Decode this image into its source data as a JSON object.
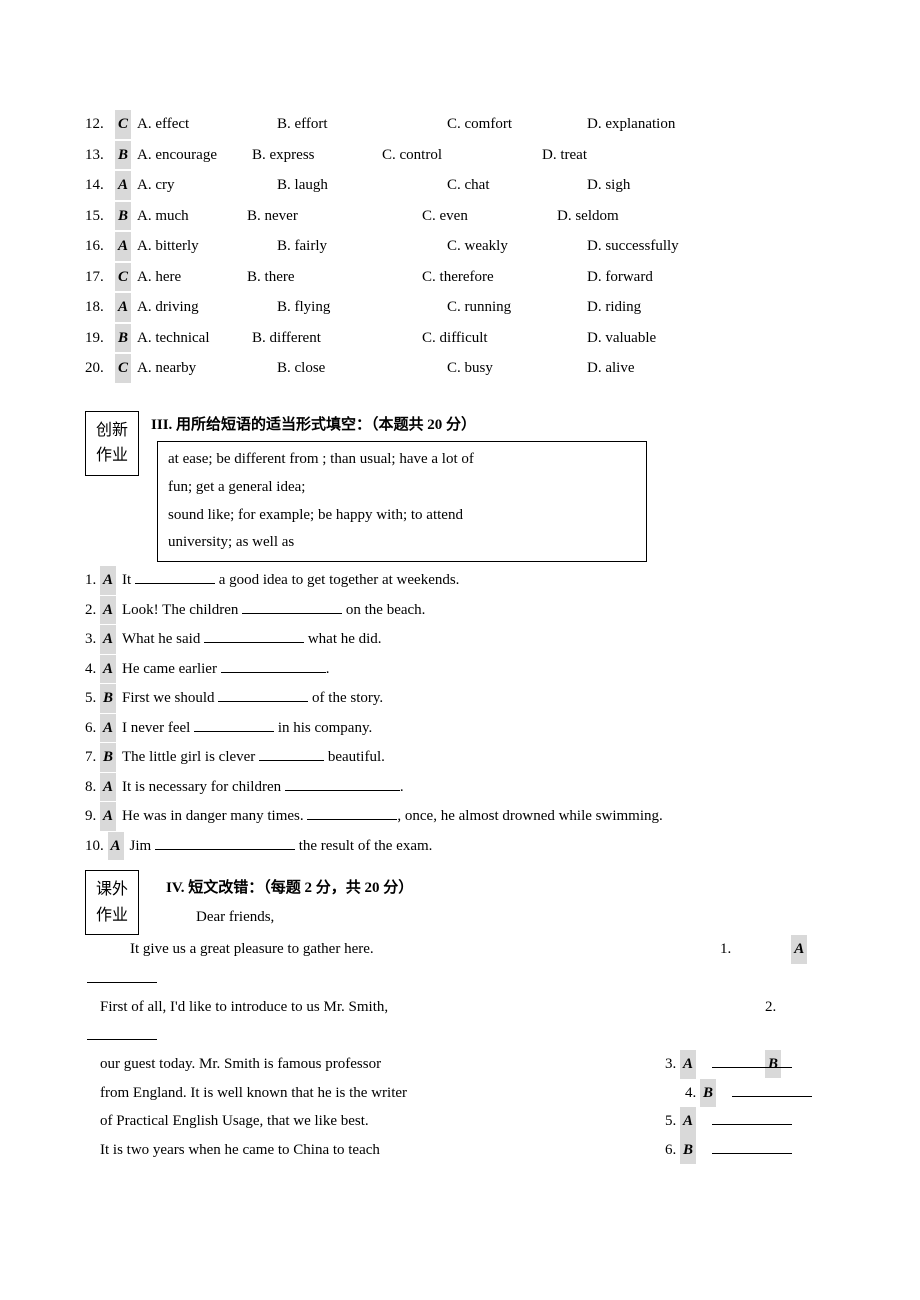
{
  "mc": [
    {
      "num": "12.",
      "ans": "C",
      "a": "A. effect",
      "b": "B. effort",
      "c": "C. comfort",
      "d": "D. explanation",
      "wA": 140,
      "wB": 170,
      "wC": 140,
      "wD": 0
    },
    {
      "num": "13.",
      "ans": "B",
      "a": "A. encourage",
      "b": "B. express",
      "c": "C. control",
      "d": "D. treat",
      "wA": 115,
      "wB": 130,
      "wC": 160,
      "wD": 0
    },
    {
      "num": "14.",
      "ans": "A",
      "a": "A. cry",
      "b": "B. laugh",
      "c": "C. chat",
      "d": "D. sigh",
      "wA": 140,
      "wB": 170,
      "wC": 140,
      "wD": 0
    },
    {
      "num": "15.",
      "ans": "B",
      "a": "A. much",
      "b": "B. never",
      "c": "C. even",
      "d": "D. seldom",
      "wA": 110,
      "wB": 175,
      "wC": 135,
      "wD": 0
    },
    {
      "num": "16.",
      "ans": "A",
      "a": "A. bitterly",
      "b": "B. fairly",
      "c": "C. weakly",
      "d": "D. successfully",
      "wA": 140,
      "wB": 170,
      "wC": 140,
      "wD": 0
    },
    {
      "num": "17.",
      "ans": "C",
      "a": "A. here",
      "b": "B. there",
      "c": "C. therefore",
      "d": "D. forward",
      "wA": 110,
      "wB": 175,
      "wC": 165,
      "wD": 0
    },
    {
      "num": "18.",
      "ans": "A",
      "a": "A. driving",
      "b": "B. flying",
      "c": "C. running",
      "d": "D. riding",
      "wA": 140,
      "wB": 170,
      "wC": 140,
      "wD": 0
    },
    {
      "num": "19.",
      "ans": "B",
      "a": "A. technical",
      "b": "B. different",
      "c": "C. difficult",
      "d": "D. valuable",
      "wA": 115,
      "wB": 170,
      "wC": 165,
      "wD": 0
    },
    {
      "num": "20.",
      "ans": "C",
      "a": "A. nearby",
      "b": "B. close",
      "c": "C. busy",
      "d": "D. alive",
      "wA": 140,
      "wB": 170,
      "wC": 140,
      "wD": 0
    }
  ],
  "sec3": {
    "label_l1": "创新",
    "label_l2": "作业",
    "title": "III. 用所给短语的适当形式填空：（本题共 20 分）",
    "bank_l1": "at ease; be different from ; than usual; have a lot of",
    "bank_l2": "fun; get a general idea;",
    "bank_l3": "sound like; for example;  be happy with; to attend",
    "bank_l4": "university; as well as"
  },
  "fill": [
    {
      "num": "1.",
      "ans": "A",
      "pre": "It ",
      "post": " a good idea to get together at weekends.",
      "bw": 80
    },
    {
      "num": "2.",
      "ans": "A",
      "pre": "Look! The children ",
      "post": " on the beach.",
      "bw": 100
    },
    {
      "num": "3.",
      "ans": "A",
      "pre": "What he said ",
      "post": " what he did.",
      "bw": 100
    },
    {
      "num": "4.",
      "ans": "A",
      "pre": "He came earlier ",
      "post": ".",
      "bw": 105
    },
    {
      "num": "5.",
      "ans": "B",
      "pre": "First we should ",
      "post": " of the story.",
      "bw": 90
    },
    {
      "num": "6.",
      "ans": "A",
      "pre": "I never feel ",
      "post": " in his company.",
      "bw": 80
    },
    {
      "num": "7.",
      "ans": "B",
      "pre": "The little girl is clever ",
      "post": " beautiful.",
      "bw": 65
    },
    {
      "num": "8.",
      "ans": "A",
      "pre": "It is necessary for children ",
      "post": ".",
      "bw": 115
    },
    {
      "num": "9.",
      "ans": "A",
      "pre": "He was in danger many times. ",
      "post": ", once, he almost drowned while swimming.",
      "bw": 90
    },
    {
      "num": "10.",
      "ans": "A",
      "pre": "Jim ",
      "post": " the result of the exam.",
      "bw": 140
    }
  ],
  "sec4": {
    "label_l1": "课外",
    "label_l2": "作业",
    "title": "IV. 短文改错：（每题 2 分，共 20 分）",
    "greeting": "Dear friends,"
  },
  "err": [
    {
      "text": "It give us a great pleasure to gather here.",
      "num": "1.",
      "ans": "A",
      "dash": true,
      "indent": 3,
      "numOffset": 635,
      "ansRight": true
    },
    {
      "text": "First of all, I'd like to introduce to us Mr. Smith,",
      "num": "2.",
      "ans": "B",
      "dash": true,
      "indent": 1,
      "numOffset": 680,
      "ansRight": true
    },
    {
      "text": "our guest today. Mr. Smith is famous professor",
      "num": "3.",
      "ans": "A",
      "dash": false,
      "indent": 1,
      "numOffset": 580,
      "ansRight": false
    },
    {
      "text": "from England. It is well known that he is the writer",
      "num": "4.",
      "ans": "B",
      "dash": false,
      "indent": 1,
      "numOffset": 600,
      "ansRight": false
    },
    {
      "text": "of Practical English Usage, that we like best.",
      "num": "5.",
      "ans": "A",
      "dash": false,
      "indent": 1,
      "numOffset": 580,
      "ansRight": false
    },
    {
      "text": "It is two years when he came to China to teach",
      "num": "6.",
      "ans": "B",
      "dash": false,
      "indent": 1,
      "numOffset": 580,
      "ansRight": false
    }
  ]
}
